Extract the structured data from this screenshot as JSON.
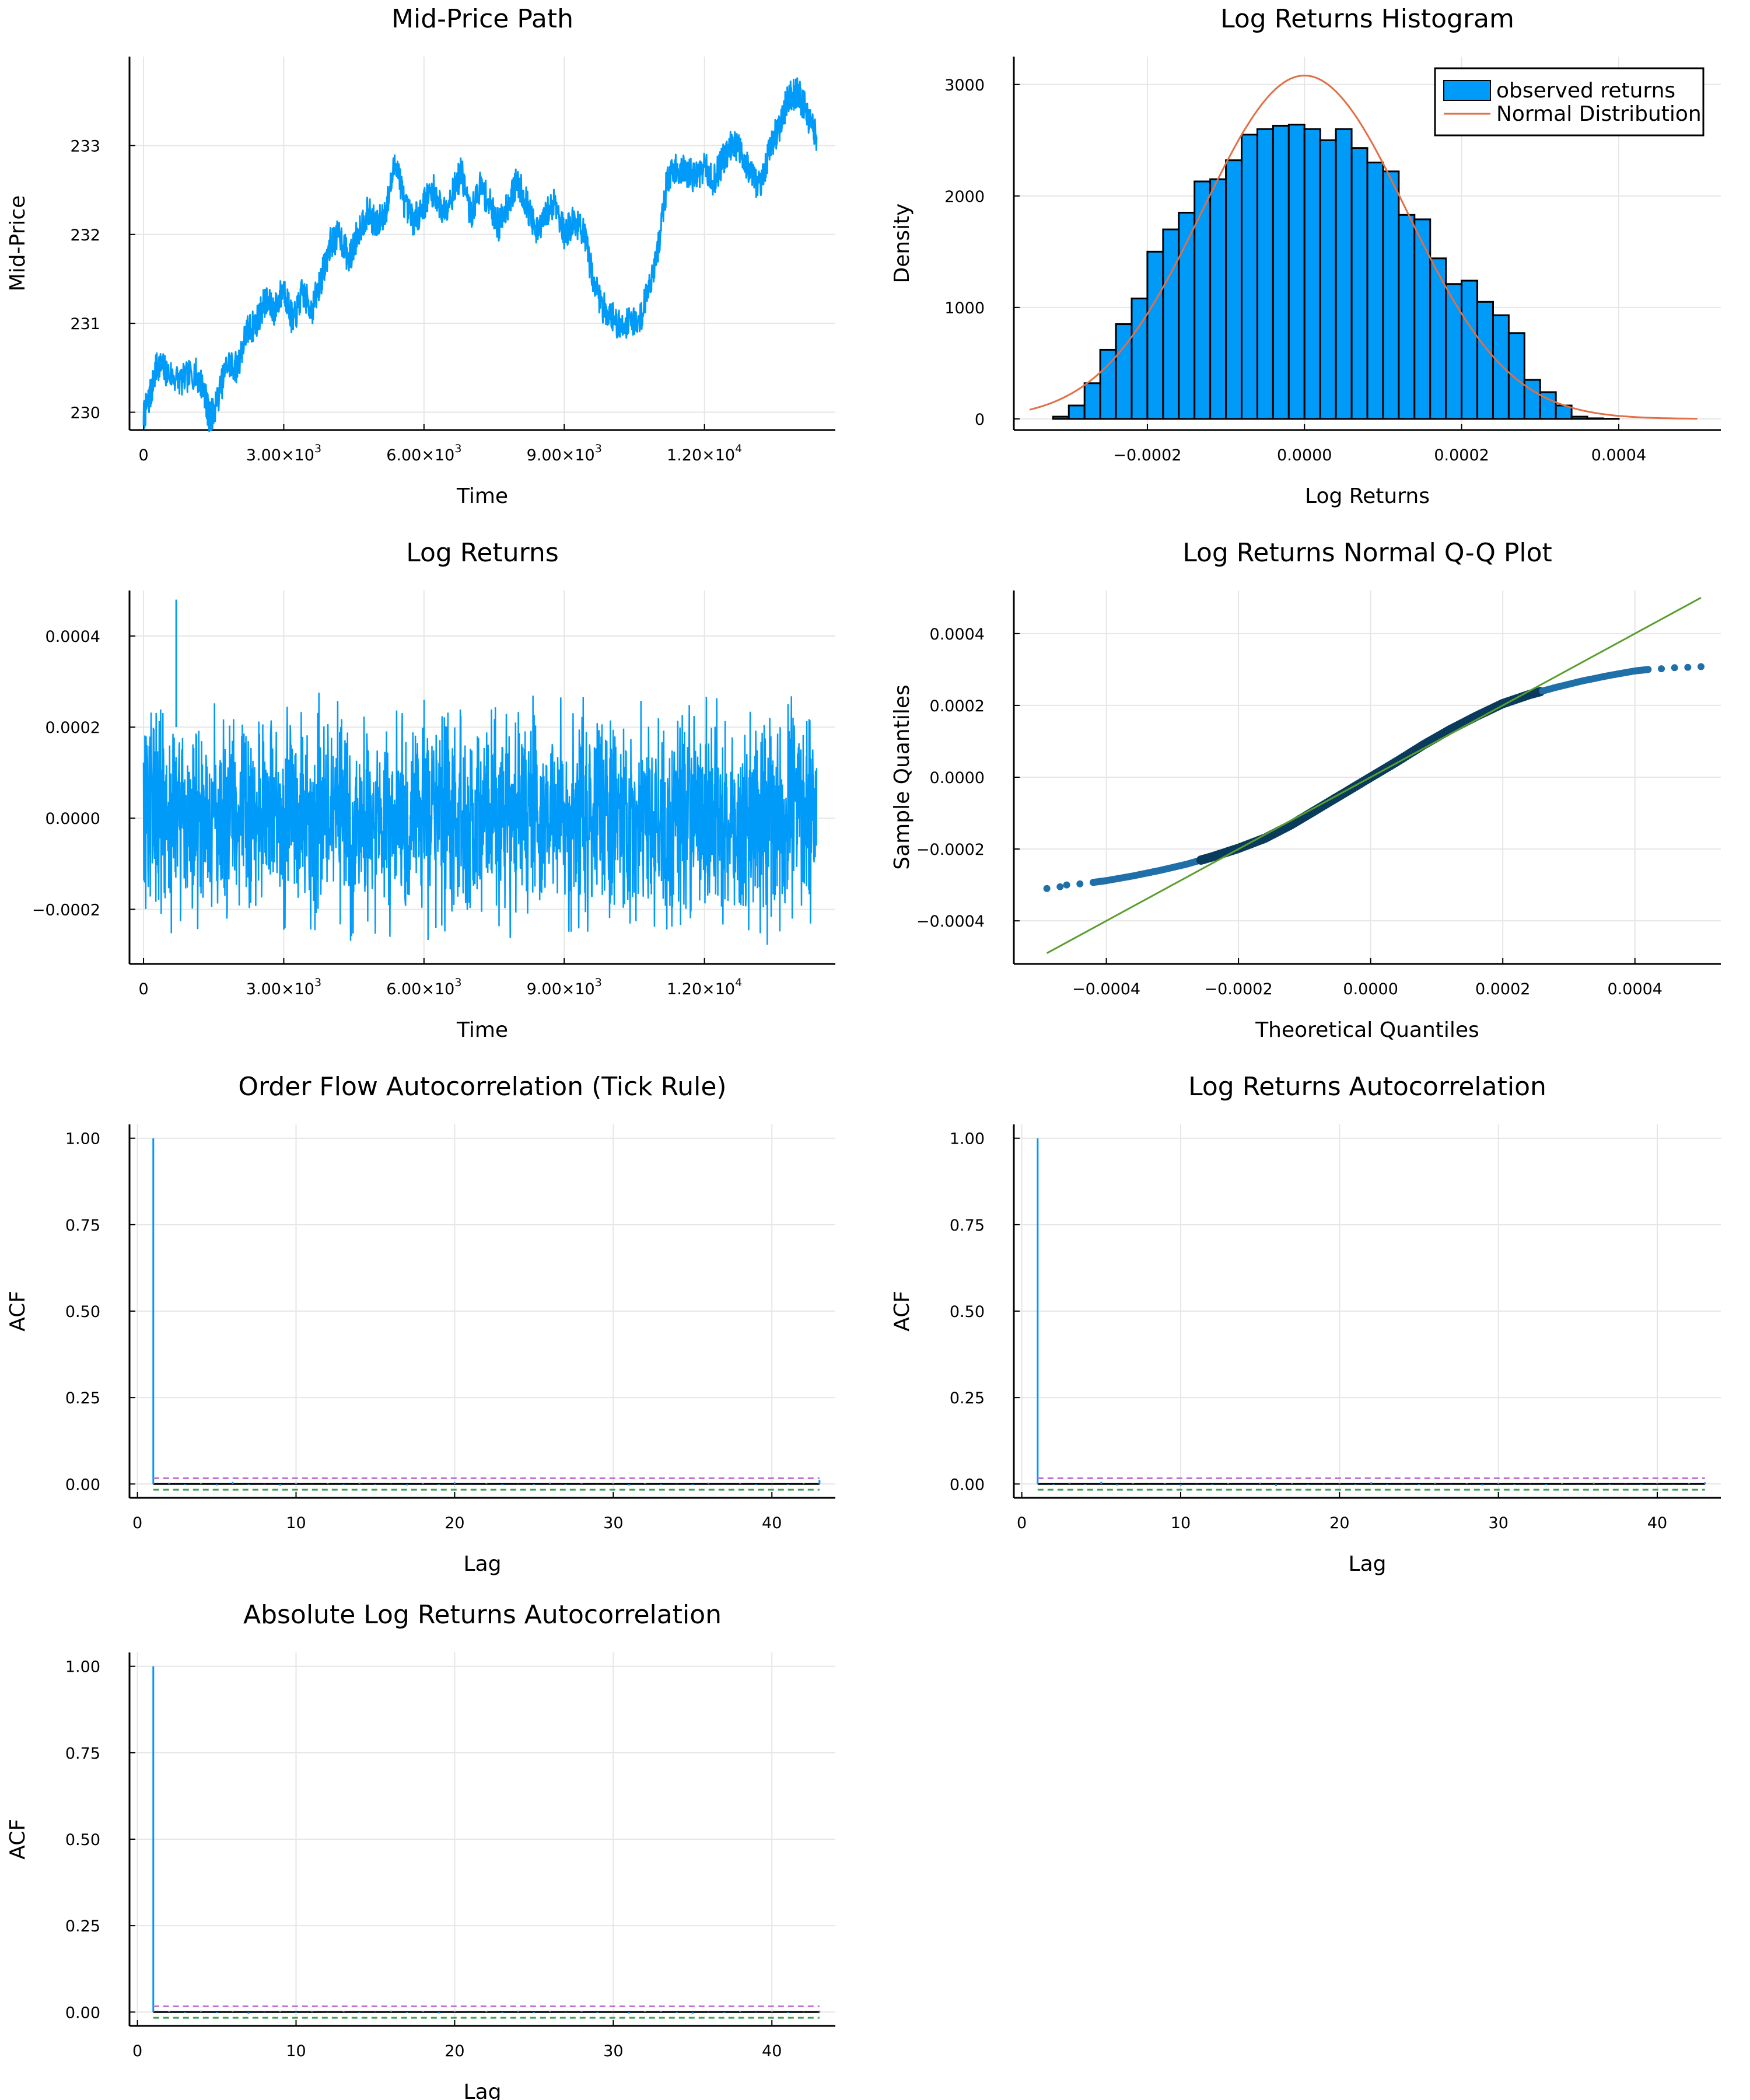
{
  "colors": {
    "blue": "#009AF9",
    "orange": "#E26F46",
    "green": "#3DA44D",
    "purple": "#C271D2",
    "teal": "#00A9AD",
    "black": "#000000",
    "grid": "#E6E6E6"
  },
  "chart_data": [
    {
      "id": "midprice",
      "type": "line",
      "title": "Mid-Price Path",
      "xlabel": "Time",
      "ylabel": "Mid-Price",
      "xlim": [
        -300,
        14800
      ],
      "ylim": [
        229.8,
        234.0
      ],
      "xticks": [
        {
          "v": 0,
          "label": "0"
        },
        {
          "v": 3000,
          "label": "3.00×10",
          "sup": "3"
        },
        {
          "v": 6000,
          "label": "6.00×10",
          "sup": "3"
        },
        {
          "v": 9000,
          "label": "9.00×10",
          "sup": "3"
        },
        {
          "v": 12000,
          "label": "1.20×10",
          "sup": "4"
        }
      ],
      "yticks": [
        {
          "v": 230,
          "label": "230"
        },
        {
          "v": 231,
          "label": "231"
        },
        {
          "v": 232,
          "label": "232"
        },
        {
          "v": 233,
          "label": "233"
        }
      ],
      "grid": true,
      "series": [
        {
          "color": "blue",
          "noise": 0.18,
          "x": [
            0,
            150,
            300,
            500,
            800,
            1100,
            1300,
            1400,
            1500,
            1800,
            2000,
            2200,
            2400,
            2600,
            2800,
            3000,
            3200,
            3400,
            3600,
            3800,
            4000,
            4200,
            4400,
            4600,
            4800,
            5000,
            5200,
            5400,
            5600,
            5800,
            6000,
            6200,
            6400,
            6600,
            6800,
            7000,
            7200,
            7400,
            7600,
            7800,
            8000,
            8200,
            8400,
            8600,
            8800,
            9000,
            9200,
            9400,
            9600,
            9800,
            10000,
            10200,
            10400,
            10600,
            10800,
            11000,
            11200,
            11400,
            11600,
            11800,
            12000,
            12200,
            12400,
            12600,
            12800,
            13000,
            13200,
            13400,
            13600,
            13800,
            14000,
            14200,
            14400
          ],
          "y": [
            229.95,
            230.2,
            230.55,
            230.45,
            230.35,
            230.45,
            230.25,
            229.95,
            230.0,
            230.55,
            230.5,
            230.9,
            231.0,
            231.25,
            231.15,
            231.4,
            231.0,
            231.35,
            231.15,
            231.5,
            231.9,
            232.0,
            231.7,
            232.05,
            232.25,
            232.1,
            232.3,
            232.85,
            232.3,
            232.15,
            232.35,
            232.5,
            232.25,
            232.45,
            232.7,
            232.2,
            232.55,
            232.35,
            232.1,
            232.35,
            232.6,
            232.35,
            232.0,
            232.2,
            232.4,
            232.0,
            232.15,
            232.05,
            231.55,
            231.2,
            231.1,
            230.95,
            231.05,
            231.0,
            231.4,
            231.8,
            232.6,
            232.75,
            232.7,
            232.65,
            232.75,
            232.6,
            232.85,
            233.05,
            232.9,
            232.7,
            232.5,
            233.0,
            233.2,
            233.55,
            233.6,
            233.35,
            233.1
          ]
        }
      ]
    },
    {
      "id": "histogram",
      "type": "bar",
      "title": "Log Returns Histogram",
      "xlabel": "Log Returns",
      "ylabel": "Density",
      "xlim": [
        -0.00037,
        0.00053
      ],
      "ylim": [
        -100,
        3250
      ],
      "xticks": [
        {
          "v": -0.0002,
          "label": "−0.0002"
        },
        {
          "v": 0,
          "label": "0.0000"
        },
        {
          "v": 0.0002,
          "label": "0.0002"
        },
        {
          "v": 0.0004,
          "label": "0.0004"
        }
      ],
      "yticks": [
        {
          "v": 0,
          "label": "0"
        },
        {
          "v": 1000,
          "label": "1000"
        },
        {
          "v": 2000,
          "label": "2000"
        },
        {
          "v": 3000,
          "label": "3000"
        }
      ],
      "grid": true,
      "legend_position": "top-right",
      "legend": [
        {
          "label": "observed returns",
          "color": "blue",
          "kind": "patch"
        },
        {
          "label": "Normal Distribution",
          "color": "orange",
          "kind": "line"
        }
      ],
      "bins": {
        "start": -0.00032,
        "width": 2e-05,
        "values": [
          20,
          120,
          320,
          620,
          850,
          1080,
          1500,
          1700,
          1850,
          2130,
          2150,
          2320,
          2550,
          2600,
          2630,
          2640,
          2600,
          2500,
          2600,
          2430,
          2300,
          2220,
          1830,
          1790,
          1440,
          1210,
          1240,
          1050,
          930,
          770,
          350,
          240,
          120,
          20,
          5,
          2,
          0,
          0,
          0,
          0
        ]
      },
      "normal_curve": {
        "mean": 0.0,
        "sd": 0.00013,
        "peak": 3080,
        "x_range": [
          -0.00035,
          0.0005
        ]
      }
    },
    {
      "id": "logreturns",
      "type": "line",
      "title": "Log Returns",
      "xlabel": "Time",
      "ylabel": "",
      "xlim": [
        -300,
        14800
      ],
      "ylim": [
        -0.00032,
        0.0005
      ],
      "xticks": [
        {
          "v": 0,
          "label": "0"
        },
        {
          "v": 3000,
          "label": "3.00×10",
          "sup": "3"
        },
        {
          "v": 6000,
          "label": "6.00×10",
          "sup": "3"
        },
        {
          "v": 9000,
          "label": "9.00×10",
          "sup": "3"
        },
        {
          "v": 12000,
          "label": "1.20×10",
          "sup": "4"
        }
      ],
      "yticks": [
        {
          "v": -0.0002,
          "label": "−0.0002"
        },
        {
          "v": 0,
          "label": "0.0000"
        },
        {
          "v": 0.0002,
          "label": "0.0002"
        },
        {
          "v": 0.0004,
          "label": "0.0004"
        }
      ],
      "grid": true,
      "series": [
        {
          "color": "blue",
          "x_range": [
            0,
            14400
          ],
          "band": [
            -0.0003,
            0.0003
          ],
          "spike": {
            "x": 700,
            "y": 0.00048
          }
        }
      ]
    },
    {
      "id": "qq",
      "type": "scatter",
      "title": "Log Returns Normal Q-Q Plot",
      "xlabel": "Theoretical Quantiles",
      "ylabel": "Sample Quantiles",
      "xlim": [
        -0.00054,
        0.00053
      ],
      "ylim": [
        -0.00052,
        0.00052
      ],
      "xticks": [
        {
          "v": -0.0004,
          "label": "−0.0004"
        },
        {
          "v": -0.0002,
          "label": "−0.0002"
        },
        {
          "v": 0,
          "label": "0.0000"
        },
        {
          "v": 0.0002,
          "label": "0.0002"
        },
        {
          "v": 0.0004,
          "label": "0.0004"
        }
      ],
      "yticks": [
        {
          "v": -0.0004,
          "label": "−0.0004"
        },
        {
          "v": -0.0002,
          "label": "−0.0002"
        },
        {
          "v": 0,
          "label": "0.0000"
        },
        {
          "v": 0.0002,
          "label": "0.0002"
        },
        {
          "v": 0.0004,
          "label": "0.0004"
        }
      ],
      "grid": true,
      "reference_line": {
        "color": "green",
        "x": [
          -0.00049,
          0.0005
        ],
        "y": [
          -0.00049,
          0.0005
        ]
      },
      "series": [
        {
          "color": "blue",
          "x": [
            -0.00049,
            -0.00047,
            -0.00046,
            -0.00044,
            -0.00042,
            -0.0004,
            -0.00036,
            -0.00032,
            -0.00028,
            -0.00024,
            -0.0002,
            -0.00016,
            -0.00012,
            -8e-05,
            -4e-05,
            0.0,
            4e-05,
            8e-05,
            0.00012,
            0.00016,
            0.0002,
            0.00024,
            0.00028,
            0.00032,
            0.00036,
            0.0004,
            0.00042,
            0.00044,
            0.00046,
            0.00048,
            0.0005
          ],
          "y": [
            -0.00031,
            -0.000305,
            -0.0003,
            -0.000297,
            -0.000293,
            -0.000288,
            -0.000275,
            -0.00026,
            -0.000243,
            -0.000222,
            -0.000198,
            -0.00017,
            -0.000132,
            -8.8e-05,
            -4.4e-05,
            0.0,
            4.4e-05,
            9e-05,
            0.000132,
            0.00017,
            0.000205,
            0.00023,
            0.00025,
            0.000268,
            0.000283,
            0.000296,
            0.0003,
            0.000302,
            0.000305,
            0.000306,
            0.000308
          ]
        }
      ]
    },
    {
      "id": "acf_orderflow",
      "type": "bar",
      "title": "Order Flow Autocorrelation (Tick Rule)",
      "xlabel": "Lag",
      "ylabel": "ACF",
      "xlim": [
        -0.5,
        44
      ],
      "ylim": [
        -0.04,
        1.04
      ],
      "xticks": [
        {
          "v": 0,
          "label": "0"
        },
        {
          "v": 10,
          "label": "10"
        },
        {
          "v": 20,
          "label": "20"
        },
        {
          "v": 30,
          "label": "30"
        },
        {
          "v": 40,
          "label": "40"
        }
      ],
      "yticks": [
        {
          "v": 0,
          "label": "0.00"
        },
        {
          "v": 0.25,
          "label": "0.25"
        },
        {
          "v": 0.5,
          "label": "0.50"
        },
        {
          "v": 0.75,
          "label": "0.75"
        },
        {
          "v": 1,
          "label": "1.00"
        }
      ],
      "grid": true,
      "conf_band": [
        0.0165,
        -0.0165
      ],
      "lags": [
        1,
        43
      ],
      "values": [
        1.0,
        0.004,
        -0.003,
        0.002,
        -0.004,
        0.006,
        -0.002,
        0.001,
        -0.005,
        0.003,
        -0.001,
        0.002,
        -0.003,
        0.004,
        -0.002,
        0.001,
        -0.004,
        0.003,
        -0.002,
        0.005,
        -0.001,
        0.002,
        -0.003,
        0.001,
        -0.002,
        0.004,
        -0.003,
        0.002,
        -0.001,
        0.003,
        -0.004,
        0.002,
        -0.002,
        0.001,
        -0.003,
        0.004,
        -0.001,
        0.002,
        -0.003,
        0.001,
        -0.002,
        0.003,
        0.012
      ]
    },
    {
      "id": "acf_returns",
      "type": "bar",
      "title": "Log Returns Autocorrelation",
      "xlabel": "Lag",
      "ylabel": "ACF",
      "xlim": [
        -0.5,
        44
      ],
      "ylim": [
        -0.04,
        1.04
      ],
      "xticks": [
        {
          "v": 0,
          "label": "0"
        },
        {
          "v": 10,
          "label": "10"
        },
        {
          "v": 20,
          "label": "20"
        },
        {
          "v": 30,
          "label": "30"
        },
        {
          "v": 40,
          "label": "40"
        }
      ],
      "yticks": [
        {
          "v": 0,
          "label": "0.00"
        },
        {
          "v": 0.25,
          "label": "0.25"
        },
        {
          "v": 0.5,
          "label": "0.50"
        },
        {
          "v": 0.75,
          "label": "0.75"
        },
        {
          "v": 1,
          "label": "1.00"
        }
      ],
      "grid": true,
      "conf_band": [
        0.0165,
        -0.0165
      ],
      "lags": [
        1,
        43
      ],
      "values": [
        1.0,
        -0.003,
        0.004,
        -0.002,
        0.006,
        -0.004,
        0.002,
        -0.001,
        0.003,
        -0.005,
        0.001,
        -0.002,
        0.003,
        -0.001,
        0.004,
        -0.006,
        0.002,
        -0.003,
        0.001,
        0.002,
        -0.002,
        0.005,
        -0.003,
        0.001,
        -0.002,
        0.004,
        -0.001,
        0.002,
        -0.004,
        0.003,
        -0.002,
        0.001,
        -0.003,
        0.002,
        -0.001,
        0.004,
        -0.002,
        0.001,
        -0.003,
        0.002,
        -0.001,
        0.002,
        0.005
      ]
    },
    {
      "id": "acf_absreturns",
      "type": "bar",
      "title": "Absolute Log Returns Autocorrelation",
      "xlabel": "Lag",
      "ylabel": "ACF",
      "xlim": [
        -0.5,
        44
      ],
      "ylim": [
        -0.04,
        1.04
      ],
      "xticks": [
        {
          "v": 0,
          "label": "0"
        },
        {
          "v": 10,
          "label": "10"
        },
        {
          "v": 20,
          "label": "20"
        },
        {
          "v": 30,
          "label": "30"
        },
        {
          "v": 40,
          "label": "40"
        }
      ],
      "yticks": [
        {
          "v": 0,
          "label": "0.00"
        },
        {
          "v": 0.25,
          "label": "0.25"
        },
        {
          "v": 0.5,
          "label": "0.50"
        },
        {
          "v": 0.75,
          "label": "0.75"
        },
        {
          "v": 1,
          "label": "1.00"
        }
      ],
      "grid": true,
      "conf_band": [
        0.0165,
        -0.0165
      ],
      "lags": [
        1,
        43
      ],
      "values": [
        1.0,
        0.003,
        -0.002,
        0.004,
        -0.003,
        0.002,
        -0.005,
        0.001,
        0.003,
        -0.002,
        0.004,
        -0.001,
        0.002,
        -0.003,
        0.001,
        0.004,
        -0.002,
        0.003,
        -0.004,
        0.002,
        -0.001,
        0.003,
        -0.002,
        0.004,
        -0.003,
        0.002,
        -0.001,
        0.003,
        -0.002,
        0.001,
        -0.004,
        0.002,
        0.003,
        -0.002,
        -0.005,
        0.001,
        -0.002,
        0.003,
        -0.001,
        0.002,
        -0.003,
        0.001,
        0.004
      ]
    }
  ]
}
